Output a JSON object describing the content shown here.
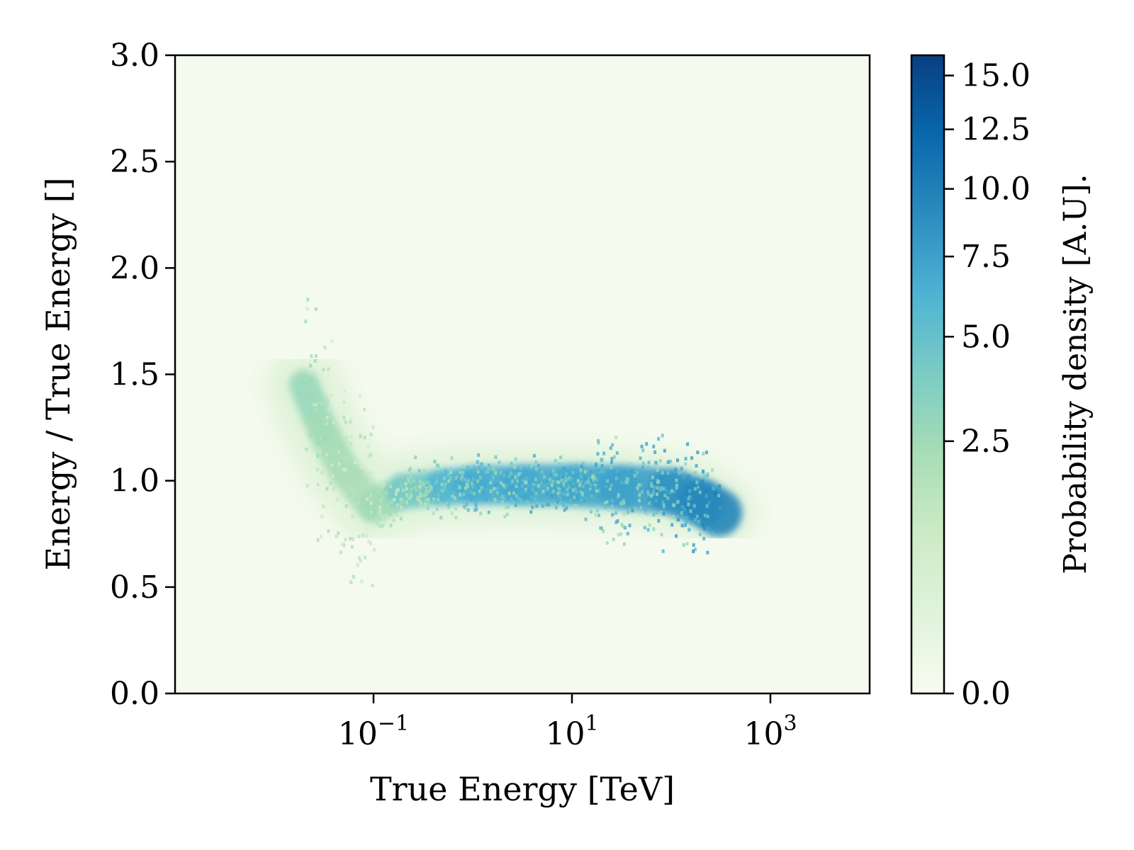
{
  "chart_data": {
    "type": "heatmap",
    "title": "",
    "xlabel": "True Energy [TeV]",
    "ylabel": "Energy / True Energy []",
    "x_scale": "log",
    "xlim": [
      0.001,
      10000
    ],
    "ylim": [
      0,
      3
    ],
    "x_ticks": [
      {
        "value": 0.1,
        "base": "10",
        "exp": "−1"
      },
      {
        "value": 10,
        "base": "10",
        "exp": "1"
      },
      {
        "value": 1000,
        "base": "10",
        "exp": "3"
      }
    ],
    "y_ticks": [
      {
        "value": 0,
        "label": "0.0"
      },
      {
        "value": 0.5,
        "label": "0.5"
      },
      {
        "value": 1,
        "label": "1.0"
      },
      {
        "value": 1.5,
        "label": "1.5"
      },
      {
        "value": 2,
        "label": "2.0"
      },
      {
        "value": 2.5,
        "label": "2.5"
      },
      {
        "value": 3,
        "label": "3.0"
      }
    ],
    "colorbar": {
      "label": "Probability density [A.U].",
      "range": [
        0,
        16
      ],
      "scale": "sqrt",
      "ticks": [
        {
          "value": 0,
          "label": "0.0"
        },
        {
          "value": 2.5,
          "label": "2.5"
        },
        {
          "value": 5,
          "label": "5.0"
        },
        {
          "value": 7.5,
          "label": "7.5"
        },
        {
          "value": 10,
          "label": "10.0"
        },
        {
          "value": 12.5,
          "label": "12.5"
        },
        {
          "value": 15,
          "label": "15.0"
        }
      ],
      "colormap": "GnBu",
      "colors": [
        "#f7fcf0",
        "#e0f3db",
        "#ccebc5",
        "#a8ddb5",
        "#7bccc4",
        "#4eb3d3",
        "#2b8cbe",
        "#0868ac",
        "#084081"
      ]
    },
    "density_ridge": [
      {
        "x": 0.02,
        "y": 1.45,
        "density": 3.0
      },
      {
        "x": 0.03,
        "y": 1.25,
        "density": 2.5
      },
      {
        "x": 0.05,
        "y": 1.05,
        "density": 2.2
      },
      {
        "x": 0.1,
        "y": 0.88,
        "density": 2.0
      },
      {
        "x": 0.2,
        "y": 0.95,
        "density": 3.0
      },
      {
        "x": 0.5,
        "y": 0.97,
        "density": 5.5
      },
      {
        "x": 1,
        "y": 0.98,
        "density": 6.5
      },
      {
        "x": 3,
        "y": 0.98,
        "density": 7.0
      },
      {
        "x": 10,
        "y": 0.98,
        "density": 7.0
      },
      {
        "x": 30,
        "y": 0.97,
        "density": 7.0
      },
      {
        "x": 100,
        "y": 0.95,
        "density": 8.0
      },
      {
        "x": 200,
        "y": 0.9,
        "density": 9.0
      },
      {
        "x": 300,
        "y": 0.85,
        "density": 10.0
      }
    ]
  }
}
